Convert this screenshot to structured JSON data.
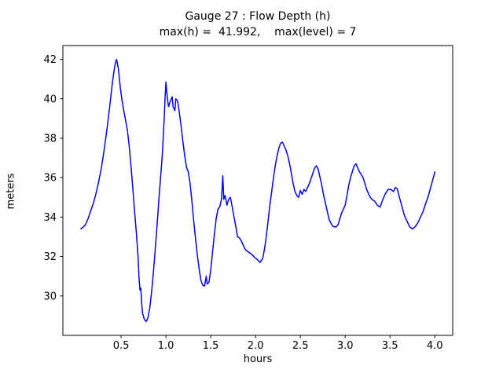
{
  "chart_data": {
    "type": "line",
    "title": "Gauge 27 : Flow Depth (h)",
    "subtitle": "max(h) =  41.992,    max(level) = 7",
    "xlabel": "hours",
    "ylabel": "meters",
    "xlim": [
      -0.15,
      4.2
    ],
    "ylim": [
      28.0,
      42.7
    ],
    "xticks": [
      0.5,
      1.0,
      1.5,
      2.0,
      2.5,
      3.0,
      3.5,
      4.0
    ],
    "yticks": [
      30,
      32,
      34,
      36,
      38,
      40,
      42
    ],
    "grid": false,
    "legend": "none",
    "line_color": "#0000ff",
    "axis_color": "#000000",
    "background_color": "#ffffff",
    "annotations": {
      "max_h": 41.992,
      "max_level": 7,
      "gauge": 27
    },
    "series": [
      {
        "name": "flow-depth-h",
        "points": [
          [
            0.05,
            33.4
          ],
          [
            0.08,
            33.5
          ],
          [
            0.1,
            33.6
          ],
          [
            0.13,
            33.9
          ],
          [
            0.16,
            34.3
          ],
          [
            0.19,
            34.7
          ],
          [
            0.22,
            35.2
          ],
          [
            0.25,
            35.8
          ],
          [
            0.28,
            36.5
          ],
          [
            0.31,
            37.4
          ],
          [
            0.34,
            38.4
          ],
          [
            0.37,
            39.5
          ],
          [
            0.4,
            40.7
          ],
          [
            0.42,
            41.4
          ],
          [
            0.44,
            41.9
          ],
          [
            0.45,
            42.0
          ],
          [
            0.47,
            41.5
          ],
          [
            0.49,
            40.6
          ],
          [
            0.51,
            39.9
          ],
          [
            0.53,
            39.4
          ],
          [
            0.55,
            38.9
          ],
          [
            0.57,
            38.4
          ],
          [
            0.59,
            37.6
          ],
          [
            0.61,
            36.6
          ],
          [
            0.63,
            35.5
          ],
          [
            0.65,
            34.3
          ],
          [
            0.67,
            33.2
          ],
          [
            0.69,
            31.9
          ],
          [
            0.7,
            30.9
          ],
          [
            0.71,
            30.3
          ],
          [
            0.72,
            30.4
          ],
          [
            0.73,
            29.6
          ],
          [
            0.74,
            29.1
          ],
          [
            0.76,
            28.8
          ],
          [
            0.78,
            28.7
          ],
          [
            0.8,
            28.9
          ],
          [
            0.82,
            29.4
          ],
          [
            0.84,
            30.2
          ],
          [
            0.86,
            31.2
          ],
          [
            0.88,
            32.3
          ],
          [
            0.9,
            33.5
          ],
          [
            0.92,
            34.8
          ],
          [
            0.94,
            36.0
          ],
          [
            0.96,
            37.2
          ],
          [
            0.98,
            38.9
          ],
          [
            0.99,
            40.0
          ],
          [
            1.0,
            40.85
          ],
          [
            1.01,
            40.3
          ],
          [
            1.02,
            39.9
          ],
          [
            1.03,
            39.6
          ],
          [
            1.05,
            39.9
          ],
          [
            1.07,
            40.1
          ],
          [
            1.08,
            39.6
          ],
          [
            1.1,
            39.4
          ],
          [
            1.11,
            40.0
          ],
          [
            1.13,
            39.9
          ],
          [
            1.15,
            39.3
          ],
          [
            1.17,
            38.6
          ],
          [
            1.19,
            37.8
          ],
          [
            1.21,
            37.1
          ],
          [
            1.23,
            36.5
          ],
          [
            1.25,
            36.3
          ],
          [
            1.27,
            35.7
          ],
          [
            1.29,
            34.8
          ],
          [
            1.31,
            33.8
          ],
          [
            1.33,
            32.9
          ],
          [
            1.35,
            32.1
          ],
          [
            1.37,
            31.4
          ],
          [
            1.39,
            30.8
          ],
          [
            1.41,
            30.55
          ],
          [
            1.43,
            30.5
          ],
          [
            1.45,
            31.0
          ],
          [
            1.46,
            30.6
          ],
          [
            1.48,
            30.7
          ],
          [
            1.5,
            31.3
          ],
          [
            1.52,
            32.2
          ],
          [
            1.54,
            33.1
          ],
          [
            1.56,
            33.9
          ],
          [
            1.58,
            34.4
          ],
          [
            1.6,
            34.5
          ],
          [
            1.62,
            34.9
          ],
          [
            1.635,
            36.1
          ],
          [
            1.645,
            34.9
          ],
          [
            1.66,
            35.1
          ],
          [
            1.68,
            34.6
          ],
          [
            1.7,
            34.9
          ],
          [
            1.72,
            35.0
          ],
          [
            1.74,
            34.5
          ],
          [
            1.76,
            34.0
          ],
          [
            1.78,
            33.5
          ],
          [
            1.8,
            33.0
          ],
          [
            1.82,
            32.95
          ],
          [
            1.84,
            32.8
          ],
          [
            1.86,
            32.6
          ],
          [
            1.88,
            32.4
          ],
          [
            1.9,
            32.3
          ],
          [
            1.93,
            32.2
          ],
          [
            1.96,
            32.1
          ],
          [
            1.99,
            31.95
          ],
          [
            2.02,
            31.85
          ],
          [
            2.05,
            31.7
          ],
          [
            2.08,
            31.9
          ],
          [
            2.1,
            32.4
          ],
          [
            2.12,
            33.0
          ],
          [
            2.14,
            33.8
          ],
          [
            2.16,
            34.6
          ],
          [
            2.18,
            35.3
          ],
          [
            2.2,
            36.0
          ],
          [
            2.22,
            36.6
          ],
          [
            2.24,
            37.1
          ],
          [
            2.26,
            37.5
          ],
          [
            2.28,
            37.75
          ],
          [
            2.3,
            37.8
          ],
          [
            2.32,
            37.6
          ],
          [
            2.34,
            37.4
          ],
          [
            2.36,
            37.1
          ],
          [
            2.38,
            36.7
          ],
          [
            2.4,
            36.2
          ],
          [
            2.42,
            35.7
          ],
          [
            2.44,
            35.3
          ],
          [
            2.46,
            35.1
          ],
          [
            2.48,
            35.0
          ],
          [
            2.5,
            35.35
          ],
          [
            2.52,
            35.15
          ],
          [
            2.54,
            35.4
          ],
          [
            2.56,
            35.3
          ],
          [
            2.58,
            35.5
          ],
          [
            2.6,
            35.7
          ],
          [
            2.63,
            36.1
          ],
          [
            2.66,
            36.5
          ],
          [
            2.68,
            36.6
          ],
          [
            2.7,
            36.4
          ],
          [
            2.72,
            36.0
          ],
          [
            2.74,
            35.6
          ],
          [
            2.76,
            35.1
          ],
          [
            2.78,
            34.7
          ],
          [
            2.8,
            34.3
          ],
          [
            2.82,
            33.9
          ],
          [
            2.84,
            33.7
          ],
          [
            2.86,
            33.55
          ],
          [
            2.88,
            33.5
          ],
          [
            2.9,
            33.5
          ],
          [
            2.92,
            33.6
          ],
          [
            2.94,
            33.9
          ],
          [
            2.96,
            34.2
          ],
          [
            2.98,
            34.4
          ],
          [
            3.0,
            34.6
          ],
          [
            3.02,
            35.1
          ],
          [
            3.04,
            35.6
          ],
          [
            3.06,
            36.0
          ],
          [
            3.08,
            36.3
          ],
          [
            3.1,
            36.6
          ],
          [
            3.12,
            36.7
          ],
          [
            3.14,
            36.5
          ],
          [
            3.16,
            36.3
          ],
          [
            3.18,
            36.15
          ],
          [
            3.2,
            36.0
          ],
          [
            3.22,
            35.7
          ],
          [
            3.24,
            35.4
          ],
          [
            3.26,
            35.2
          ],
          [
            3.28,
            35.0
          ],
          [
            3.3,
            34.9
          ],
          [
            3.33,
            34.8
          ],
          [
            3.36,
            34.6
          ],
          [
            3.39,
            34.5
          ],
          [
            3.42,
            34.9
          ],
          [
            3.45,
            35.2
          ],
          [
            3.48,
            35.4
          ],
          [
            3.51,
            35.4
          ],
          [
            3.54,
            35.3
          ],
          [
            3.56,
            35.5
          ],
          [
            3.58,
            35.45
          ],
          [
            3.6,
            35.1
          ],
          [
            3.63,
            34.6
          ],
          [
            3.66,
            34.1
          ],
          [
            3.69,
            33.8
          ],
          [
            3.72,
            33.5
          ],
          [
            3.75,
            33.4
          ],
          [
            3.78,
            33.5
          ],
          [
            3.81,
            33.7
          ],
          [
            3.84,
            34.0
          ],
          [
            3.87,
            34.3
          ],
          [
            3.9,
            34.7
          ],
          [
            3.93,
            35.1
          ],
          [
            3.96,
            35.6
          ],
          [
            3.99,
            36.1
          ],
          [
            4.0,
            36.3
          ]
        ]
      }
    ]
  }
}
